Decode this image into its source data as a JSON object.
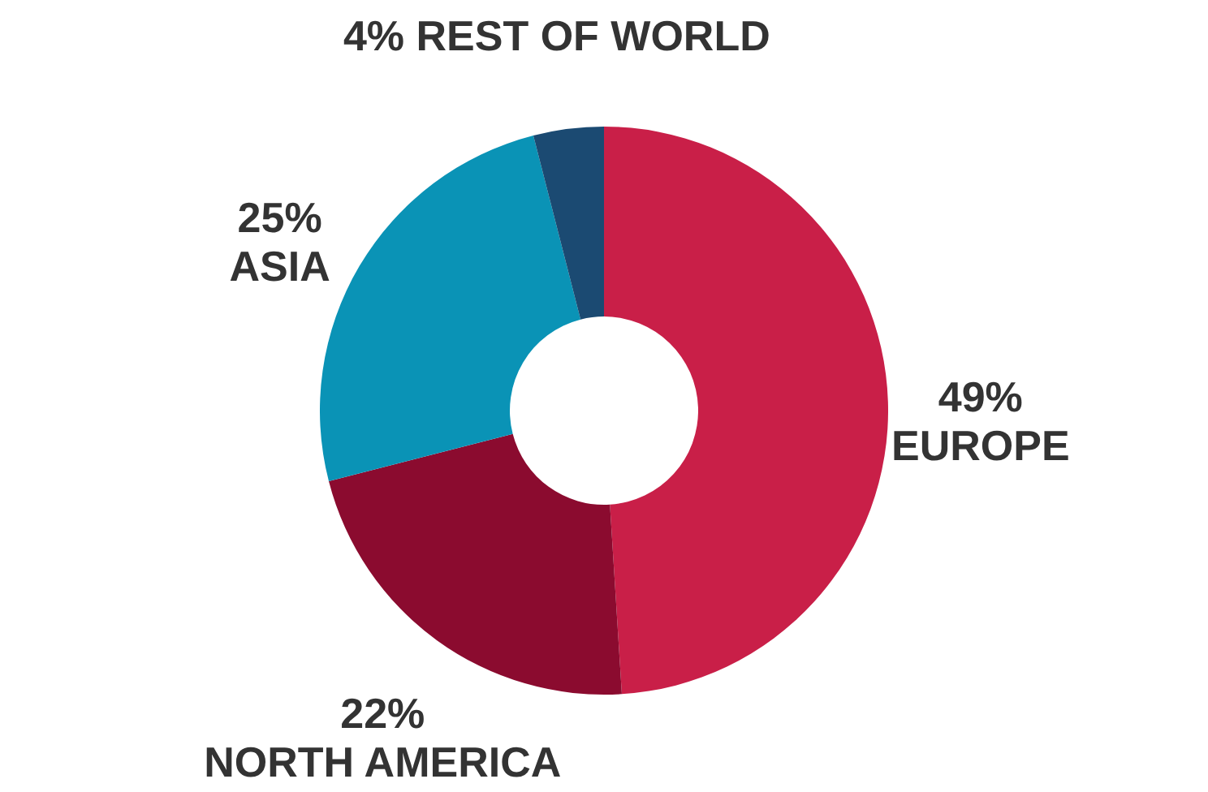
{
  "chart_data": {
    "type": "donut",
    "categories": [
      "EUROPE",
      "NORTH AMERICA",
      "ASIA",
      "REST OF WORLD"
    ],
    "values": [
      49,
      22,
      25,
      4
    ],
    "value_labels": [
      "49%",
      "22%",
      "25%",
      "4%"
    ],
    "colors": [
      "#c91f48",
      "#8b0b2f",
      "#0a93b6",
      "#1b4a72"
    ]
  }
}
